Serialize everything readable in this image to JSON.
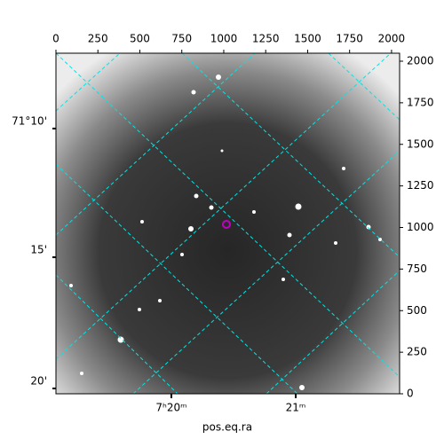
{
  "chart_data": {
    "type": "image",
    "xlabel": "pos.eq.ra",
    "xlim": [
      0,
      2048
    ],
    "ylim": [
      0,
      2048
    ],
    "xticks": [
      0,
      250,
      500,
      750,
      1000,
      1250,
      1500,
      1750,
      2000
    ],
    "yticks": [
      0,
      250,
      500,
      750,
      1000,
      1250,
      1500,
      1750,
      2000
    ],
    "bottom_ticks": [
      {
        "value": 688,
        "label": "7ʰ20ᵐ"
      },
      {
        "value": 1429,
        "label": "21ᵐ"
      }
    ],
    "left_ticks": [
      {
        "value": 1595,
        "label": "71°10'"
      },
      {
        "value": 821,
        "label": "15'"
      },
      {
        "value": 32,
        "label": "20'"
      }
    ],
    "marker": {
      "x": 1016,
      "y": 1019,
      "color": "#c000c0"
    }
  }
}
